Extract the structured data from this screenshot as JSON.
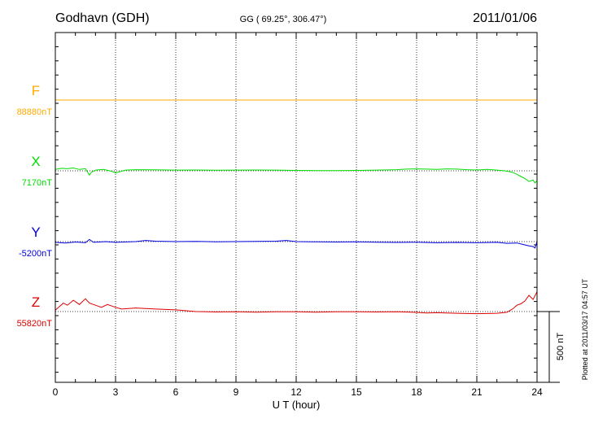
{
  "header": {
    "station": "Godhavn (GDH)",
    "coords": "GG ( 69.25°, 306.47°)",
    "date": "2011/01/06"
  },
  "footer": {
    "plotted": "Plotted at 2011/03/17 04:57 UT"
  },
  "chart_data": {
    "type": "line",
    "xlabel": "U T (hour)",
    "xlim": [
      0,
      24
    ],
    "x_ticks": [
      "0",
      "3",
      "6",
      "9",
      "12",
      "15",
      "18",
      "21",
      "24"
    ],
    "scale_bar": {
      "label": "500 nT",
      "value_nT": 500
    },
    "grid": true,
    "series": [
      {
        "name": "F",
        "baseline_label": "88880nT",
        "color": "#ffaa00",
        "x": [
          0,
          3,
          6,
          9,
          12,
          15,
          18,
          21,
          24
        ],
        "offset_nT": [
          0,
          0,
          0,
          0,
          0,
          0,
          0,
          0,
          0
        ]
      },
      {
        "name": "X",
        "baseline_label": "7170nT",
        "color": "#00dd00",
        "x": [
          0,
          0.3,
          0.6,
          0.9,
          1.2,
          1.5,
          1.7,
          1.8,
          2.0,
          2.4,
          2.8,
          3.0,
          3.5,
          4.0,
          5,
          6,
          7,
          8,
          9,
          10,
          11,
          12,
          13,
          14,
          15,
          16,
          17,
          17.5,
          18,
          18.5,
          19,
          19.5,
          20,
          20.5,
          21,
          21.5,
          22,
          22.3,
          22.6,
          22.8,
          23.0,
          23.2,
          23.4,
          23.6,
          23.8,
          23.9,
          24
        ],
        "offset_nT": [
          10,
          18,
          15,
          20,
          10,
          15,
          -30,
          -10,
          5,
          10,
          -3,
          -15,
          5,
          8,
          7,
          5,
          6,
          4,
          5,
          6,
          5,
          3,
          2,
          2,
          3,
          5,
          8,
          12,
          14,
          12,
          10,
          14,
          12,
          8,
          6,
          10,
          5,
          2,
          -5,
          -12,
          -25,
          -40,
          -55,
          -75,
          -65,
          -85,
          -70
        ]
      },
      {
        "name": "Y",
        "baseline_label": "-5200nT",
        "color": "#0000dd",
        "x": [
          0,
          0.5,
          1.0,
          1.5,
          1.7,
          1.9,
          2.5,
          3,
          4,
          4.5,
          5,
          6,
          7,
          8,
          9,
          10,
          11,
          11.5,
          12,
          13,
          14,
          15,
          16,
          17,
          18,
          19,
          20,
          21,
          22,
          22.5,
          23,
          23.3,
          23.6,
          23.8,
          23.9,
          24
        ],
        "offset_nT": [
          -5,
          -10,
          -3,
          -8,
          15,
          -5,
          0,
          -5,
          0,
          8,
          3,
          0,
          2,
          -2,
          0,
          2,
          3,
          8,
          0,
          -2,
          -3,
          -1,
          -4,
          -6,
          -4,
          -8,
          -6,
          -8,
          -5,
          -12,
          -10,
          -20,
          -30,
          -35,
          -45,
          0
        ]
      },
      {
        "name": "Z",
        "baseline_label": "55820nT",
        "color": "#dd0000",
        "x": [
          0,
          0.4,
          0.6,
          0.9,
          1.2,
          1.5,
          1.7,
          2.0,
          2.3,
          2.6,
          3.0,
          3.3,
          4,
          5,
          6,
          7,
          8,
          9,
          10,
          11,
          12,
          13,
          14,
          15,
          16,
          17,
          18,
          18.5,
          19,
          20,
          21,
          22,
          22.5,
          22.8,
          23.0,
          23.2,
          23.4,
          23.6,
          23.8,
          24
        ],
        "offset_nT": [
          10,
          60,
          45,
          80,
          50,
          90,
          60,
          45,
          30,
          50,
          30,
          18,
          25,
          18,
          12,
          0,
          -3,
          -2,
          -4,
          -2,
          -2,
          -4,
          -1,
          -2,
          -3,
          -1,
          -6,
          -10,
          -8,
          -12,
          -15,
          -12,
          -5,
          20,
          45,
          55,
          75,
          115,
          85,
          140
        ]
      }
    ]
  }
}
